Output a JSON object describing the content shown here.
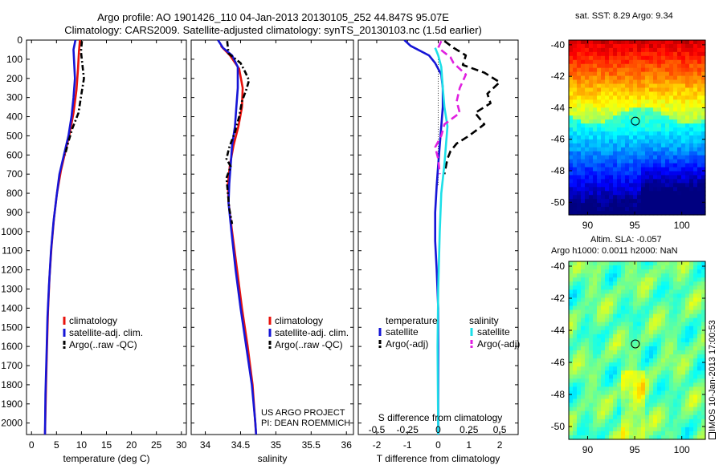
{
  "title": {
    "line1": "Argo profile: AO 1901426_110 04-Jan-2013 20130105_252 44.847S 95.07E",
    "line2": "Climatology: CARS2009. Satellite-adjusted climatology: synTS_20130103.nc (1.5d earlier)"
  },
  "colors": {
    "climatology": "#e8120c",
    "satellite_temp": "#1515d6",
    "argo_temp": "#000000",
    "satellite_sal": "#1ddfe8",
    "argo_sal": "#e020e0"
  },
  "chart_data": [
    {
      "type": "line",
      "name": "temperature panel",
      "xlabel": "temperature (deg C)",
      "ylabel": "",
      "xlim": [
        -1,
        31
      ],
      "ylim": [
        2060,
        0
      ],
      "y_inverted": true,
      "xticks": [
        0,
        5,
        10,
        15,
        20,
        25,
        30
      ],
      "xticklabels": [
        "0",
        "5",
        "10",
        "15",
        "20",
        "25",
        "30"
      ],
      "yticks": [
        0,
        100,
        200,
        300,
        400,
        500,
        600,
        700,
        800,
        900,
        1000,
        1100,
        1200,
        1300,
        1400,
        1500,
        1600,
        1700,
        1800,
        1900,
        2000
      ],
      "yticklabels": [
        "0",
        "100",
        "200",
        "300",
        "400",
        "500",
        "600",
        "700",
        "800",
        "900",
        "1000",
        "1100",
        "1200",
        "1300",
        "1400",
        "1500",
        "1600",
        "1700",
        "1800",
        "1900",
        "2000"
      ],
      "legend": [
        "climatology",
        "satellite-adj. clim.",
        "Argo(..raw -QC)"
      ],
      "legend_position": "lower-right",
      "series": [
        {
          "name": "climatology",
          "color_key": "climatology",
          "dash": "solid",
          "points": [
            [
              9.7,
              0
            ],
            [
              9.5,
              60
            ],
            [
              9.3,
              150
            ],
            [
              9.0,
              260
            ],
            [
              8.4,
              380
            ],
            [
              7.7,
              480
            ],
            [
              6.8,
              580
            ],
            [
              5.9,
              680
            ],
            [
              5.1,
              800
            ],
            [
              4.5,
              930
            ],
            [
              4.0,
              1080
            ],
            [
              3.6,
              1240
            ],
            [
              3.3,
              1420
            ],
            [
              3.1,
              1600
            ],
            [
              2.9,
              1800
            ],
            [
              2.7,
              2060
            ]
          ]
        },
        {
          "name": "satellite-adj. clim.",
          "color_key": "satellite_temp",
          "dash": "solid",
          "points": [
            [
              8.8,
              0
            ],
            [
              8.4,
              50
            ],
            [
              8.5,
              100
            ],
            [
              8.7,
              200
            ],
            [
              8.4,
              300
            ],
            [
              8.0,
              400
            ],
            [
              7.4,
              500
            ],
            [
              6.5,
              600
            ],
            [
              5.6,
              700
            ],
            [
              5.0,
              820
            ],
            [
              4.4,
              950
            ],
            [
              3.9,
              1100
            ],
            [
              3.5,
              1280
            ],
            [
              3.2,
              1450
            ],
            [
              3.0,
              1650
            ],
            [
              2.8,
              1850
            ],
            [
              2.7,
              2060
            ]
          ]
        },
        {
          "name": "Argo(..raw -QC)",
          "color_key": "argo_temp",
          "dash": "dashdot",
          "points": [
            [
              10.1,
              5
            ],
            [
              9.9,
              60
            ],
            [
              10.2,
              130
            ],
            [
              10.5,
              200
            ],
            [
              10.0,
              280
            ],
            [
              9.4,
              380
            ],
            [
              8.2,
              460
            ],
            [
              7.4,
              530
            ],
            [
              6.7,
              600
            ]
          ]
        }
      ]
    },
    {
      "type": "line",
      "name": "salinity panel",
      "xlabel": "salinity",
      "ylabel": "",
      "xlim": [
        33.8,
        36.1
      ],
      "ylim": [
        2060,
        0
      ],
      "y_inverted": true,
      "xticks": [
        34,
        34.5,
        35,
        35.5,
        36
      ],
      "xticklabels": [
        "34",
        "34.5",
        "35",
        "35.5",
        "36"
      ],
      "legend": [
        "climatology",
        "satellite-adj. clim.",
        "Argo(..raw -QC)"
      ],
      "legend_position": "lower-right",
      "annotations": [
        "US ARGO PROJECT",
        "PI: DEAN ROEMMICH"
      ],
      "series": [
        {
          "name": "climatology",
          "color_key": "climatology",
          "dash": "solid",
          "points": [
            [
              34.22,
              30
            ],
            [
              34.35,
              80
            ],
            [
              34.48,
              150
            ],
            [
              34.53,
              250
            ],
            [
              34.52,
              350
            ],
            [
              34.47,
              450
            ],
            [
              34.4,
              550
            ],
            [
              34.35,
              650
            ],
            [
              34.32,
              750
            ],
            [
              34.33,
              850
            ],
            [
              34.38,
              1000
            ],
            [
              34.45,
              1200
            ],
            [
              34.52,
              1400
            ],
            [
              34.6,
              1600
            ],
            [
              34.67,
              1800
            ],
            [
              34.72,
              2060
            ]
          ]
        },
        {
          "name": "satellite-adj. clim.",
          "color_key": "satellite_temp",
          "dash": "solid",
          "points": [
            [
              34.18,
              0
            ],
            [
              34.25,
              40
            ],
            [
              34.38,
              80
            ],
            [
              34.46,
              140
            ],
            [
              34.46,
              250
            ],
            [
              34.44,
              350
            ],
            [
              34.42,
              450
            ],
            [
              34.38,
              550
            ],
            [
              34.36,
              650
            ],
            [
              34.34,
              750
            ],
            [
              34.33,
              850
            ],
            [
              34.37,
              1000
            ],
            [
              34.43,
              1200
            ],
            [
              34.5,
              1400
            ],
            [
              34.58,
              1600
            ],
            [
              34.66,
              1800
            ],
            [
              34.71,
              2000
            ],
            [
              34.72,
              2060
            ]
          ]
        },
        {
          "name": "Argo(..raw -QC)",
          "color_key": "argo_temp",
          "dash": "dashdot",
          "points": [
            [
              34.31,
              5
            ],
            [
              34.33,
              70
            ],
            [
              34.5,
              120
            ],
            [
              34.57,
              170
            ],
            [
              34.62,
              210
            ],
            [
              34.58,
              260
            ],
            [
              34.52,
              320
            ],
            [
              34.48,
              400
            ],
            [
              34.42,
              480
            ],
            [
              34.34,
              560
            ],
            [
              34.3,
              620
            ],
            [
              34.36,
              660
            ],
            [
              34.3,
              720
            ],
            [
              34.32,
              800
            ],
            [
              34.34,
              880
            ],
            [
              34.38,
              960
            ]
          ]
        }
      ]
    },
    {
      "type": "line",
      "name": "difference panel",
      "xlabel": "T difference from climatology",
      "xlabel_top": "S difference from climatology",
      "ylabel": "",
      "xlim": [
        -2.6,
        2.6
      ],
      "ylim": [
        2060,
        0
      ],
      "y_inverted": true,
      "xticks": [
        -2,
        -1,
        0,
        1,
        2
      ],
      "xticklabels": [
        "-2",
        "-1",
        "0",
        "1",
        "2"
      ],
      "sticks_top_values": [
        -0.5,
        -0.25,
        0,
        0.25,
        0.5
      ],
      "sticks_top_labels": [
        "-0.5",
        "-0.25",
        "0",
        "0.25",
        "0.5"
      ],
      "legend_groups": [
        {
          "title": "temperature",
          "items": [
            "satellite",
            "Argo(-adj)"
          ]
        },
        {
          "title": "salinity",
          "items": [
            "satellite",
            "Argo(-adj)"
          ]
        }
      ],
      "legend_position": "lower-middle",
      "series": [
        {
          "name": "temperature satellite",
          "color_key": "satellite_temp",
          "dash": "solid",
          "points": [
            [
              -1.1,
              0
            ],
            [
              -0.9,
              30
            ],
            [
              -0.3,
              80
            ],
            [
              -0.1,
              120
            ],
            [
              0.1,
              180
            ],
            [
              0.15,
              250
            ],
            [
              0.15,
              350
            ],
            [
              0.1,
              450
            ],
            [
              0.05,
              550
            ],
            [
              0.0,
              650
            ],
            [
              -0.05,
              760
            ],
            [
              -0.1,
              900
            ],
            [
              -0.1,
              1050
            ],
            [
              -0.05,
              1200
            ],
            [
              0,
              1400
            ],
            [
              0,
              1700
            ],
            [
              0,
              2060
            ]
          ]
        },
        {
          "name": "temperature Argo(-adj)",
          "color_key": "argo_temp",
          "dash": "dashed",
          "points": [
            [
              0.2,
              5
            ],
            [
              0.5,
              40
            ],
            [
              0.9,
              80
            ],
            [
              0.8,
              130
            ],
            [
              1.5,
              170
            ],
            [
              2.0,
              220
            ],
            [
              1.6,
              280
            ],
            [
              1.7,
              330
            ],
            [
              1.2,
              380
            ],
            [
              1.5,
              440
            ],
            [
              1.0,
              500
            ],
            [
              0.6,
              540
            ],
            [
              0.4,
              580
            ],
            [
              0.3,
              620
            ],
            [
              0.2,
              700
            ]
          ]
        },
        {
          "name": "salinity satellite",
          "color_key": "satellite_sal",
          "dash": "solid",
          "points": [
            [
              -0.1,
              40
            ],
            [
              0.0,
              80
            ],
            [
              0.1,
              140
            ],
            [
              0.15,
              250
            ],
            [
              0.2,
              350
            ],
            [
              0.3,
              450
            ],
            [
              0.25,
              550
            ],
            [
              0.2,
              650
            ],
            [
              0.1,
              800
            ],
            [
              0.05,
              1000
            ],
            [
              0.0,
              1300
            ],
            [
              -0.02,
              1600
            ],
            [
              0,
              2060
            ]
          ]
        },
        {
          "name": "salinity Argo(-adj)",
          "color_key": "argo_sal",
          "dash": "dashed",
          "points": [
            [
              0.1,
              5
            ],
            [
              0.0,
              40
            ],
            [
              0.4,
              90
            ],
            [
              0.5,
              120
            ],
            [
              0.9,
              180
            ],
            [
              0.7,
              250
            ],
            [
              0.6,
              320
            ],
            [
              0.7,
              380
            ],
            [
              0.2,
              440
            ],
            [
              0.1,
              500
            ],
            [
              -0.1,
              560
            ],
            [
              0.0,
              620
            ],
            [
              0.05,
              700
            ]
          ]
        }
      ]
    },
    {
      "type": "heatmap",
      "name": "sat SST map",
      "title": "sat. SST: 8.29  Argo: 9.34",
      "xlim": [
        88,
        102.5
      ],
      "ylim": [
        -50.8,
        -39.7
      ],
      "xticks": [
        90,
        95,
        100
      ],
      "xticklabels": [
        "90",
        "95",
        "100"
      ],
      "yticks": [
        -40,
        -42,
        -44,
        -46,
        -48,
        -50
      ],
      "yticklabels": [
        "-40",
        "-42",
        "-44",
        "-46",
        "-48",
        "-50"
      ],
      "marker": [
        95.07,
        -44.847
      ],
      "colormap": "jet"
    },
    {
      "type": "heatmap",
      "name": "altimetry SLA map",
      "title_lines": [
        "Altim. SLA: -0.057",
        "Argo h1000: 0.0011  h2000: NaN"
      ],
      "xlim": [
        88,
        102.5
      ],
      "ylim": [
        -50.8,
        -39.7
      ],
      "xticks": [
        90,
        95,
        100
      ],
      "xticklabels": [
        "90",
        "95",
        "100"
      ],
      "yticks": [
        -40,
        -42,
        -44,
        -46,
        -48,
        -50
      ],
      "yticklabels": [
        "-40",
        "-42",
        "-44",
        "-46",
        "-48",
        "-50"
      ],
      "marker": [
        95.07,
        -44.847
      ],
      "colormap": "jet"
    }
  ],
  "credit": "IMOS 10-Jan-2013 17:00:53"
}
